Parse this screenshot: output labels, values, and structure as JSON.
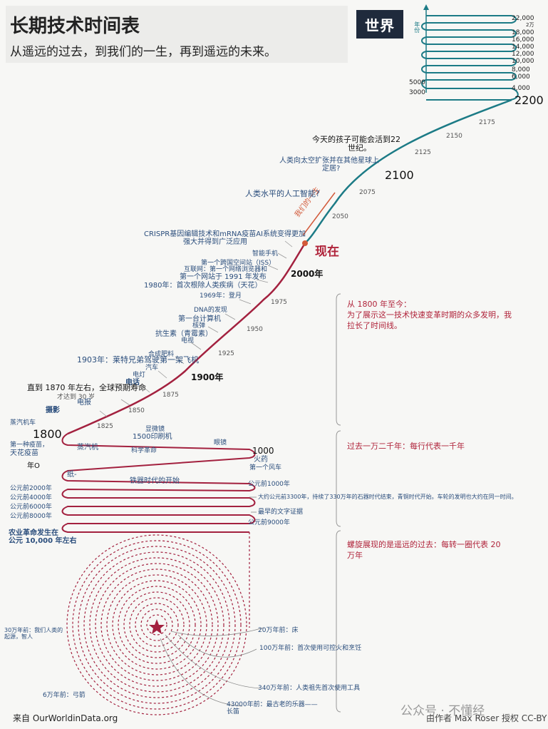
{
  "header": {
    "title": "长期技术时间表",
    "subtitle": "从遥远的过去，到我们的一生，再到遥远的未来。"
  },
  "logo": {
    "text": "世界",
    "caption": "我们的"
  },
  "axis_future": {
    "label": "年份",
    "ticks": [
      "22,000",
      "2万",
      "18,000",
      "16,000",
      "14,000",
      "12,000",
      "10,000",
      "8,000",
      "6,000",
      "4,000",
      "5000",
      "3000"
    ]
  },
  "years": {
    "y2200": "2200",
    "y2175": "2175",
    "y2150": "2150",
    "y2125": "2125",
    "y2100": "2100",
    "y2075": "2075",
    "y2050": "2050",
    "now": "现在",
    "y2000": "2000年",
    "y1975": "1975",
    "y1950": "1950",
    "y1925": "1925",
    "y1900": "1900年",
    "y1875": "1875",
    "y1850": "1850",
    "y1825": "1825",
    "y1800": "1800",
    "y1000": "1000",
    "y0": "年O"
  },
  "lifetime": "我们的一生",
  "events": {
    "e1": "今天的孩子可能会活到22",
    "e1b": "世纪。",
    "e2": "人类向太空扩张并在其他星球上",
    "e2b": "定居?",
    "e3": "人类水平的人工智能?",
    "e4": "CRISPR基因编辑技术和mRNA疫苗AI系统变得更加",
    "e4b": "强大并得到广泛应用",
    "e5": "智能手机",
    "e6": "第一个跨国空间站（ISS）",
    "e7": "互联网：第一个网络浏览器和",
    "e8": "第一个网站于 1991 年发布",
    "e9": "1980年：首次根除人类疾病（天花）",
    "e10": "1969年：登月",
    "e11": "DNA的发现",
    "e12": "第一台计算机",
    "e13": "核弹",
    "e14": "抗生素（青霉素）",
    "e15": "电视",
    "e16": "合成肥料",
    "e17": "1903年：莱特兄弟驾驶第一架飞机",
    "e18": "汽车",
    "e19": "电灯",
    "e20": "电话",
    "e21": "直到 1870 年左右，全球预期寿命",
    "e21b": "才达到 30 岁",
    "e22": "电报",
    "e23": "摄影",
    "e24": "蒸汽机车",
    "e25": "显微镜",
    "e26": "1500印刷机",
    "e27": "眼镜",
    "e28": "第一种疫苗，",
    "e28b": "天花疫苗",
    "e29": "蒸汽机",
    "e30": "科学革命",
    "e31": "火药",
    "e32": "第一个风车",
    "e33": "纸-",
    "e34": "铁器时代的开始",
    "e35": "公元前1000年",
    "e36": "公元前2000年",
    "e37": "公元前4000年",
    "e38": "公元前6000年",
    "e39": "公元前8000年",
    "e40": "公元前9000年",
    "e41": "大约公元前3300年，持续了330万年的石器时代结束，青铜时代开始。车轮的发明也大约在同一时间。",
    "e42": "最早的文字证据",
    "e43": "农业革命发生在",
    "e43b": "公元 10,000 年左右",
    "e44": "20万年前：床",
    "e45": "100万年前：首次使用可控火和烹饪",
    "e46": "340万年前：人类祖先首次使用工具",
    "e47": "43000年前：最古老的乐器——",
    "e47b": "长笛",
    "e48": "6万年前：弓箭",
    "e49": "30万年前：我们人类的",
    "e49b": "起源，智人"
  },
  "sections": {
    "s1": "从 1800 年至今：",
    "s1b": "为了展示这一技术快速变革时期的众多发明，我",
    "s1c": "拉长了时间线。",
    "s2": "过去一万二千年：每行代表一千年",
    "s3": "螺旋展现的是遥远的过去：每转一圈代表 20",
    "s3b": "万年"
  },
  "footer": {
    "source": "来自 OurWorldinData.org",
    "credit": "由作者 Max Roser 授权 CC-BY",
    "watermark": "公众号 · 不懂经"
  },
  "colors": {
    "past": "#a3213f",
    "future": "#1c7b86",
    "text": "#2a4d7c"
  }
}
